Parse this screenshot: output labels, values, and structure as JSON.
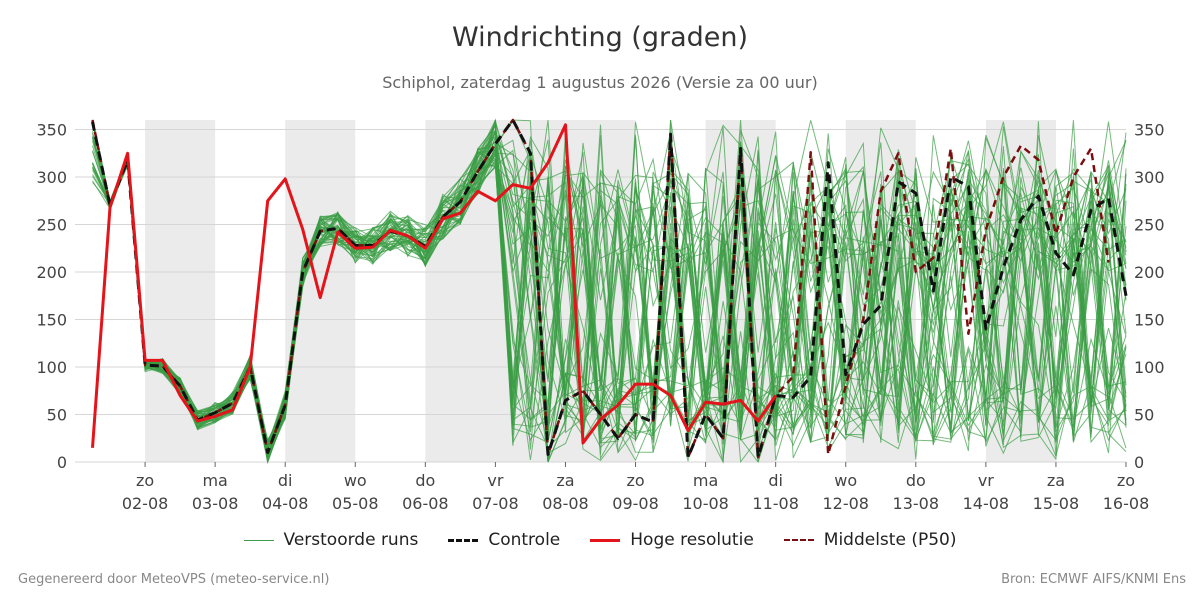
{
  "chart_data": {
    "type": "line",
    "title": "Windrichting (graden)",
    "subtitle": "Schiphol, zaterdag  1 augustus 2026 (Versie za 00 uur)",
    "ylim": [
      0,
      360
    ],
    "yticks": [
      0,
      50,
      100,
      150,
      200,
      250,
      300,
      350
    ],
    "x_start": "2026-08-01 00:00",
    "x_end": "2026-08-16 00:00",
    "x_ticks": [
      {
        "day": "zo",
        "date": "02-08"
      },
      {
        "day": "ma",
        "date": "03-08"
      },
      {
        "day": "di",
        "date": "04-08"
      },
      {
        "day": "wo",
        "date": "05-08"
      },
      {
        "day": "do",
        "date": "06-08"
      },
      {
        "day": "vr",
        "date": "07-08"
      },
      {
        "day": "za",
        "date": "08-08"
      },
      {
        "day": "zo",
        "date": "09-08"
      },
      {
        "day": "ma",
        "date": "10-08"
      },
      {
        "day": "di",
        "date": "11-08"
      },
      {
        "day": "wo",
        "date": "12-08"
      },
      {
        "day": "do",
        "date": "13-08"
      },
      {
        "day": "vr",
        "date": "14-08"
      },
      {
        "day": "za",
        "date": "15-08"
      },
      {
        "day": "zo",
        "date": "16-08"
      }
    ],
    "shaded_days": [
      "02-08",
      "04-08",
      "06-08",
      "07-08",
      "08-08",
      "10-08",
      "12-08",
      "14-08"
    ],
    "grid": true,
    "legend_position": "bottom",
    "series": [
      {
        "name": "Controle",
        "style": "dashed",
        "color": "#111111",
        "points": [
          [
            "2026-08-01 06:00",
            358
          ],
          [
            "2026-08-01 12:00",
            270
          ],
          [
            "2026-08-01 18:00",
            318
          ],
          [
            "2026-08-02 00:00",
            102
          ],
          [
            "2026-08-02 06:00",
            101
          ],
          [
            "2026-08-02 12:00",
            80
          ],
          [
            "2026-08-02 18:00",
            44
          ],
          [
            "2026-08-03 00:00",
            52
          ],
          [
            "2026-08-03 06:00",
            62
          ],
          [
            "2026-08-03 12:00",
            100
          ],
          [
            "2026-08-03 18:00",
            10
          ],
          [
            "2026-08-04 00:00",
            60
          ],
          [
            "2026-08-04 06:00",
            200
          ],
          [
            "2026-08-04 12:00",
            243
          ],
          [
            "2026-08-04 18:00",
            246
          ],
          [
            "2026-08-05 00:00",
            228
          ],
          [
            "2026-08-05 06:00",
            228
          ],
          [
            "2026-08-05 12:00",
            243
          ],
          [
            "2026-08-05 18:00",
            238
          ],
          [
            "2026-08-06 00:00",
            227
          ],
          [
            "2026-08-06 06:00",
            258
          ],
          [
            "2026-08-06 12:00",
            274
          ],
          [
            "2026-08-06 18:00",
            306
          ],
          [
            "2026-08-07 00:00",
            335
          ],
          [
            "2026-08-07 06:00",
            360
          ],
          [
            "2026-08-07 12:00",
            325
          ],
          [
            "2026-08-07 18:00",
            8
          ],
          [
            "2026-08-08 00:00",
            65
          ],
          [
            "2026-08-08 06:00",
            75
          ],
          [
            "2026-08-08 12:00",
            50
          ],
          [
            "2026-08-08 18:00",
            25
          ],
          [
            "2026-08-09 00:00",
            50
          ],
          [
            "2026-08-09 06:00",
            42
          ],
          [
            "2026-08-09 12:00",
            345
          ],
          [
            "2026-08-09 18:00",
            5
          ],
          [
            "2026-08-10 00:00",
            50
          ],
          [
            "2026-08-10 06:00",
            25
          ],
          [
            "2026-08-10 12:00",
            330
          ],
          [
            "2026-08-10 18:00",
            5
          ],
          [
            "2026-08-11 00:00",
            70
          ],
          [
            "2026-08-11 06:00",
            68
          ],
          [
            "2026-08-11 12:00",
            90
          ],
          [
            "2026-08-11 18:00",
            315
          ],
          [
            "2026-08-12 00:00",
            92
          ],
          [
            "2026-08-12 06:00",
            145
          ],
          [
            "2026-08-12 12:00",
            165
          ],
          [
            "2026-08-12 18:00",
            295
          ],
          [
            "2026-08-13 00:00",
            283
          ],
          [
            "2026-08-13 06:00",
            180
          ],
          [
            "2026-08-13 12:00",
            300
          ],
          [
            "2026-08-13 18:00",
            290
          ],
          [
            "2026-08-14 00:00",
            140
          ],
          [
            "2026-08-14 06:00",
            205
          ],
          [
            "2026-08-14 12:00",
            255
          ],
          [
            "2026-08-14 18:00",
            280
          ],
          [
            "2026-08-15 00:00",
            220
          ],
          [
            "2026-08-15 06:00",
            197
          ],
          [
            "2026-08-15 12:00",
            265
          ],
          [
            "2026-08-15 18:00",
            278
          ],
          [
            "2026-08-16 00:00",
            175
          ]
        ]
      },
      {
        "name": "Hoge resolutie",
        "style": "solid",
        "color": "#e4141b",
        "points": [
          [
            "2026-08-01 06:00",
            15
          ],
          [
            "2026-08-01 12:00",
            268
          ],
          [
            "2026-08-01 18:00",
            325
          ],
          [
            "2026-08-02 00:00",
            107
          ],
          [
            "2026-08-02 06:00",
            107
          ],
          [
            "2026-08-02 12:00",
            70
          ],
          [
            "2026-08-02 18:00",
            43
          ],
          [
            "2026-08-03 00:00",
            48
          ],
          [
            "2026-08-03 06:00",
            55
          ],
          [
            "2026-08-03 12:00",
            100
          ],
          [
            "2026-08-03 18:00",
            275
          ],
          [
            "2026-08-04 00:00",
            298
          ],
          [
            "2026-08-04 06:00",
            245
          ],
          [
            "2026-08-04 12:00",
            173
          ],
          [
            "2026-08-04 18:00",
            242
          ],
          [
            "2026-08-05 00:00",
            225
          ],
          [
            "2026-08-05 06:00",
            226
          ],
          [
            "2026-08-05 12:00",
            244
          ],
          [
            "2026-08-05 18:00",
            238
          ],
          [
            "2026-08-06 00:00",
            225
          ],
          [
            "2026-08-06 06:00",
            256
          ],
          [
            "2026-08-06 12:00",
            262
          ],
          [
            "2026-08-06 18:00",
            285
          ],
          [
            "2026-08-07 00:00",
            275
          ],
          [
            "2026-08-07 06:00",
            292
          ],
          [
            "2026-08-07 12:00",
            288
          ],
          [
            "2026-08-07 18:00",
            315
          ],
          [
            "2026-08-08 00:00",
            355
          ],
          [
            "2026-08-08 06:00",
            20
          ],
          [
            "2026-08-08 12:00",
            45
          ],
          [
            "2026-08-08 18:00",
            60
          ],
          [
            "2026-08-09 00:00",
            82
          ],
          [
            "2026-08-09 06:00",
            82
          ],
          [
            "2026-08-09 12:00",
            70
          ],
          [
            "2026-08-09 18:00",
            33
          ],
          [
            "2026-08-10 00:00",
            63
          ],
          [
            "2026-08-10 06:00",
            61
          ],
          [
            "2026-08-10 12:00",
            65
          ],
          [
            "2026-08-10 18:00",
            43
          ],
          [
            "2026-08-11 00:00",
            70
          ]
        ]
      },
      {
        "name": "Middelste (P50)",
        "style": "dashed",
        "color": "#7a0e0e",
        "points": [
          [
            "2026-08-01 06:00",
            360
          ],
          [
            "2026-08-01 12:00",
            270
          ],
          [
            "2026-08-01 18:00",
            318
          ],
          [
            "2026-08-02 00:00",
            102
          ],
          [
            "2026-08-02 06:00",
            101
          ],
          [
            "2026-08-02 12:00",
            80
          ],
          [
            "2026-08-02 18:00",
            44
          ],
          [
            "2026-08-03 00:00",
            52
          ],
          [
            "2026-08-03 06:00",
            62
          ],
          [
            "2026-08-03 12:00",
            100
          ],
          [
            "2026-08-03 18:00",
            10
          ],
          [
            "2026-08-04 00:00",
            60
          ],
          [
            "2026-08-04 06:00",
            200
          ],
          [
            "2026-08-04 12:00",
            243
          ],
          [
            "2026-08-04 18:00",
            246
          ],
          [
            "2026-08-05 00:00",
            228
          ],
          [
            "2026-08-05 06:00",
            228
          ],
          [
            "2026-08-05 12:00",
            243
          ],
          [
            "2026-08-05 18:00",
            238
          ],
          [
            "2026-08-06 00:00",
            227
          ],
          [
            "2026-08-06 06:00",
            258
          ],
          [
            "2026-08-06 12:00",
            274
          ],
          [
            "2026-08-06 18:00",
            306
          ],
          [
            "2026-08-07 00:00",
            335
          ],
          [
            "2026-08-07 06:00",
            360
          ],
          [
            "2026-08-07 12:00",
            325
          ],
          [
            "2026-08-07 18:00",
            8
          ],
          [
            "2026-08-08 00:00",
            65
          ],
          [
            "2026-08-08 06:00",
            75
          ],
          [
            "2026-08-08 12:00",
            50
          ],
          [
            "2026-08-08 18:00",
            25
          ],
          [
            "2026-08-09 00:00",
            50
          ],
          [
            "2026-08-09 06:00",
            42
          ],
          [
            "2026-08-09 12:00",
            345
          ],
          [
            "2026-08-09 18:00",
            5
          ],
          [
            "2026-08-10 00:00",
            50
          ],
          [
            "2026-08-10 06:00",
            25
          ],
          [
            "2026-08-10 12:00",
            330
          ],
          [
            "2026-08-10 18:00",
            5
          ],
          [
            "2026-08-11 00:00",
            70
          ],
          [
            "2026-08-11 06:00",
            90
          ],
          [
            "2026-08-11 12:00",
            326
          ],
          [
            "2026-08-11 18:00",
            8
          ],
          [
            "2026-08-12 00:00",
            80
          ],
          [
            "2026-08-12 06:00",
            150
          ],
          [
            "2026-08-12 12:00",
            285
          ],
          [
            "2026-08-12 18:00",
            325
          ],
          [
            "2026-08-13 00:00",
            200
          ],
          [
            "2026-08-13 06:00",
            215
          ],
          [
            "2026-08-13 12:00",
            330
          ],
          [
            "2026-08-13 18:00",
            135
          ],
          [
            "2026-08-14 00:00",
            245
          ],
          [
            "2026-08-14 06:00",
            300
          ],
          [
            "2026-08-14 12:00",
            333
          ],
          [
            "2026-08-14 18:00",
            318
          ],
          [
            "2026-08-15 00:00",
            240
          ],
          [
            "2026-08-15 06:00",
            300
          ],
          [
            "2026-08-15 12:00",
            330
          ],
          [
            "2026-08-15 18:00",
            210
          ]
        ]
      }
    ],
    "ensemble": {
      "name": "Verstoorde runs",
      "color": "#3a9d45"
    }
  },
  "legend": [
    {
      "label": "Verstoorde runs",
      "color": "#3a9d45",
      "style": "solid-thin"
    },
    {
      "label": "Controle",
      "color": "#111111",
      "style": "dashed"
    },
    {
      "label": "Hoge resolutie",
      "color": "#e4141b",
      "style": "solid"
    },
    {
      "label": "Middelste (P50)",
      "color": "#7a0e0e",
      "style": "dashed"
    }
  ],
  "footer": {
    "left": "Gegenereerd door MeteoVPS (meteo-service.nl)",
    "right": "Bron: ECMWF AIFS/KNMI Ens"
  }
}
